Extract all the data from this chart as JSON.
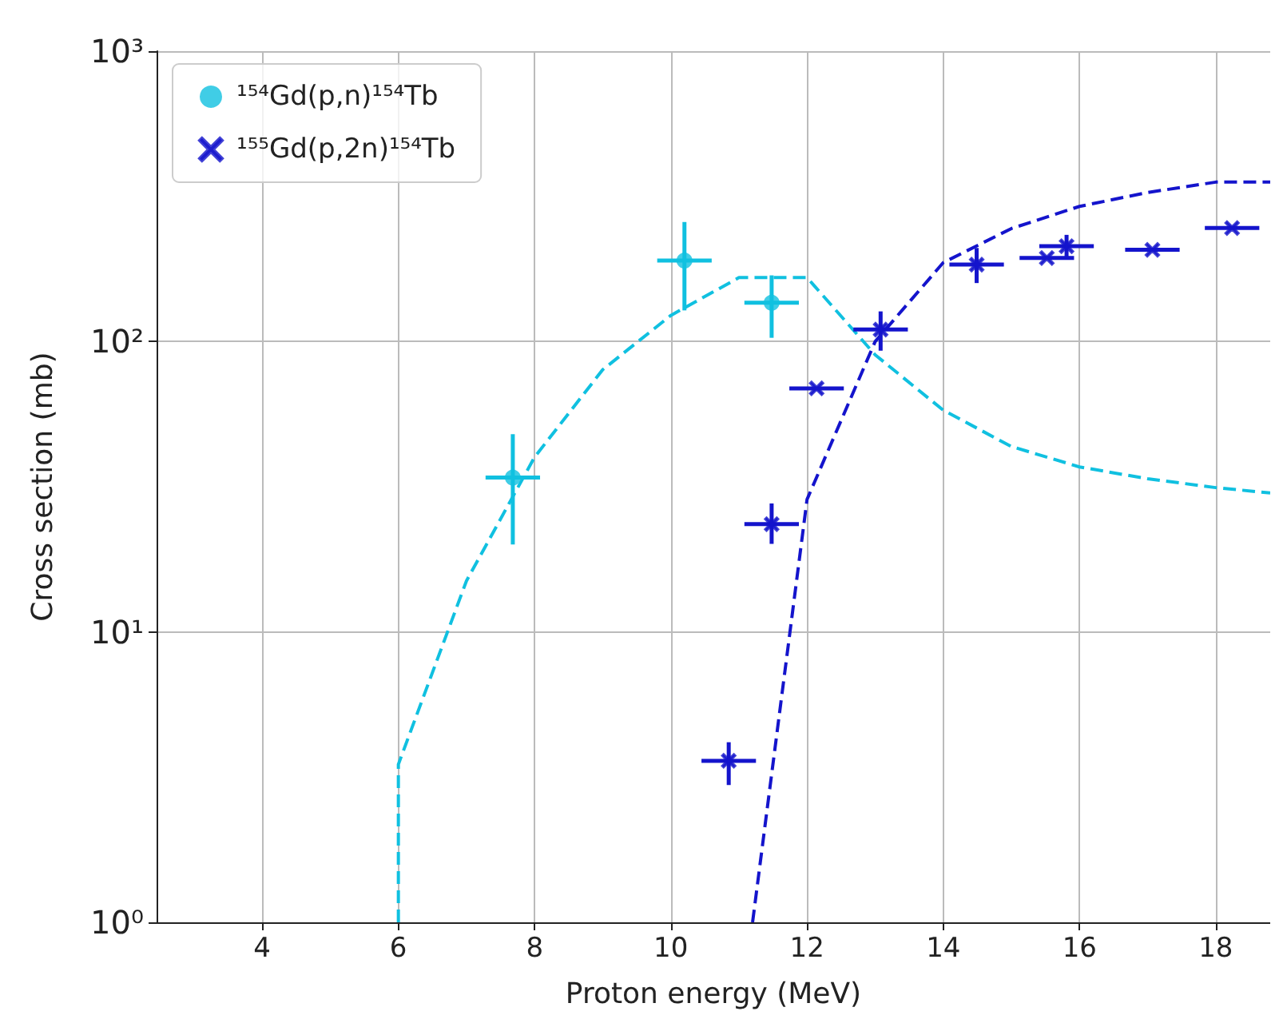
{
  "chart_data": {
    "type": "scatter",
    "xlabel": "Proton energy (MeV)",
    "ylabel": "Cross section (mb)",
    "xlim": [
      2.45,
      18.8
    ],
    "xticks": [
      4,
      6,
      8,
      10,
      12,
      14,
      16,
      18
    ],
    "ylim": [
      1,
      1000
    ],
    "yticks": [
      {
        "value": 1,
        "label": "10⁰"
      },
      {
        "value": 10,
        "label": "10¹"
      },
      {
        "value": 100,
        "label": "10²"
      },
      {
        "value": 1000,
        "label": "10³"
      }
    ],
    "log": "y",
    "grid": true,
    "legend": "top left",
    "series": [
      {
        "name": "¹⁵⁴Gd(p,n)¹⁵⁴Tb",
        "color": "#10c0e0",
        "marker": "circle",
        "x": [
          7.68,
          10.2,
          11.48
        ],
        "values": [
          34,
          190,
          136
        ],
        "errors": [
          [
            20,
            48
          ],
          [
            128,
            258
          ],
          [
            103,
            169
          ]
        ],
        "xerrors": [
          0.4,
          0.4,
          0.4
        ]
      },
      {
        "name": "¹⁵⁵Gd(p,2n)¹⁵⁴Tb",
        "color": "#1414cc",
        "marker": "cross",
        "x": [
          10.85,
          11.48,
          12.14,
          13.08,
          14.49,
          15.52,
          15.81,
          17.07,
          18.24
        ],
        "values": [
          3.6,
          23.5,
          69,
          110,
          184,
          194,
          213,
          207,
          246
        ],
        "errors": [
          [
            2.97,
            4.17
          ],
          [
            20.1,
            27.7
          ],
          null,
          [
            93,
            127
          ],
          [
            159,
            210
          ],
          null,
          [
            194,
            233
          ],
          null,
          null
        ],
        "xerrors": [
          0.4,
          0.4,
          0.4,
          0.4,
          0.4,
          0.4,
          0.4,
          0.4,
          0.4
        ]
      },
      {
        "type": "line",
        "color": "#10c0e0",
        "marker": "none",
        "line_style": "dashed",
        "x": [
          6,
          6,
          7,
          8,
          9,
          10,
          11,
          12,
          13,
          14,
          15,
          16,
          17,
          18,
          18.8
        ],
        "values": [
          1,
          3.5,
          15,
          40,
          80,
          123,
          166,
          166,
          90,
          58,
          43.5,
          37,
          33.7,
          31.4,
          30.1
        ]
      },
      {
        "type": "line",
        "color": "#1414cc",
        "marker": "none",
        "line_style": "dashed",
        "x": [
          11.2,
          12,
          13,
          14,
          15,
          16,
          17,
          18,
          18.8
        ],
        "values": [
          1,
          28.6,
          100,
          187,
          245,
          292,
          326,
          354,
          354
        ]
      }
    ]
  }
}
